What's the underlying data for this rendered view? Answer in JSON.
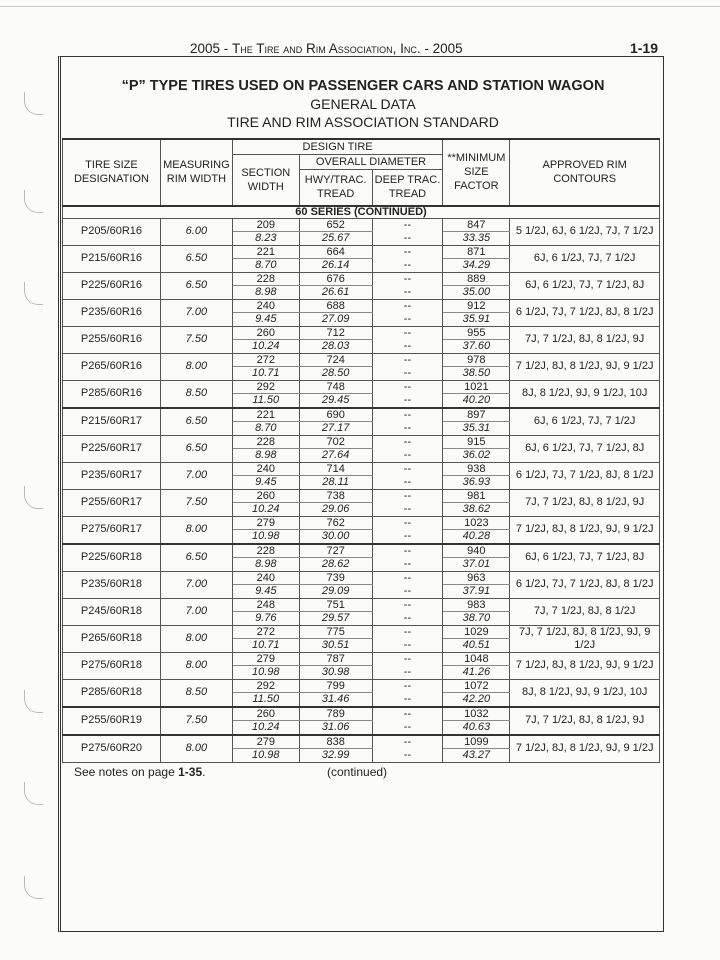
{
  "running_header": {
    "left": "2005 - ",
    "name": "The Tire and Rim Association, Inc.",
    "right": " - 2005",
    "page": "1-19"
  },
  "title": {
    "line1": "“P” TYPE TIRES USED ON PASSENGER CARS AND STATION WAGON",
    "line2": "GENERAL DATA",
    "line3": "TIRE AND RIM ASSOCIATION STANDARD"
  },
  "table": {
    "headers": {
      "tire_size": "TIRE SIZE DESIGNATION",
      "measuring_rim": "MEASURING RIM WIDTH",
      "design_tire": "DESIGN TIRE",
      "section_width": "SECTION WIDTH",
      "overall_diameter": "OVERALL DIAMETER",
      "hwy": "HWY/TRAC. TREAD",
      "deep": "DEEP TRAC. TREAD",
      "min_size": "**MINIMUM SIZE FACTOR",
      "contours": "APPROVED RIM CONTOURS"
    },
    "series_label": "60 SERIES (CONTINUED)",
    "rows": [
      {
        "size": "P205/60R16",
        "rim": "6.00",
        "sw_mm": "209",
        "sw_in": "8.23",
        "od_mm": "652",
        "od_in": "25.67",
        "deep1": "--",
        "deep2": "--",
        "msf_mm": "847",
        "msf_in": "33.35",
        "contours": "5 1/2J, 6J, 6 1/2J, 7J, 7 1/2J",
        "group": "R16"
      },
      {
        "size": "P215/60R16",
        "rim": "6.50",
        "sw_mm": "221",
        "sw_in": "8.70",
        "od_mm": "664",
        "od_in": "26.14",
        "deep1": "--",
        "deep2": "--",
        "msf_mm": "871",
        "msf_in": "34.29",
        "contours": "6J, 6 1/2J, 7J, 7 1/2J",
        "group": "R16"
      },
      {
        "size": "P225/60R16",
        "rim": "6.50",
        "sw_mm": "228",
        "sw_in": "8.98",
        "od_mm": "676",
        "od_in": "26.61",
        "deep1": "--",
        "deep2": "--",
        "msf_mm": "889",
        "msf_in": "35.00",
        "contours": "6J, 6 1/2J, 7J, 7 1/2J, 8J",
        "group": "R16"
      },
      {
        "size": "P235/60R16",
        "rim": "7.00",
        "sw_mm": "240",
        "sw_in": "9.45",
        "od_mm": "688",
        "od_in": "27.09",
        "deep1": "--",
        "deep2": "--",
        "msf_mm": "912",
        "msf_in": "35.91",
        "contours": "6 1/2J, 7J, 7 1/2J, 8J, 8 1/2J",
        "group": "R16"
      },
      {
        "size": "P255/60R16",
        "rim": "7.50",
        "sw_mm": "260",
        "sw_in": "10.24",
        "od_mm": "712",
        "od_in": "28.03",
        "deep1": "--",
        "deep2": "--",
        "msf_mm": "955",
        "msf_in": "37.60",
        "contours": "7J, 7 1/2J, 8J, 8 1/2J, 9J",
        "group": "R16"
      },
      {
        "size": "P265/60R16",
        "rim": "8.00",
        "sw_mm": "272",
        "sw_in": "10.71",
        "od_mm": "724",
        "od_in": "28.50",
        "deep1": "--",
        "deep2": "--",
        "msf_mm": "978",
        "msf_in": "38.50",
        "contours": "7 1/2J, 8J, 8 1/2J, 9J, 9 1/2J",
        "group": "R16"
      },
      {
        "size": "P285/60R16",
        "rim": "8.50",
        "sw_mm": "292",
        "sw_in": "11.50",
        "od_mm": "748",
        "od_in": "29.45",
        "deep1": "--",
        "deep2": "--",
        "msf_mm": "1021",
        "msf_in": "40.20",
        "contours": "8J, 8 1/2J, 9J, 9 1/2J, 10J",
        "group": "R16"
      },
      {
        "size": "P215/60R17",
        "rim": "6.50",
        "sw_mm": "221",
        "sw_in": "8.70",
        "od_mm": "690",
        "od_in": "27.17",
        "deep1": "--",
        "deep2": "--",
        "msf_mm": "897",
        "msf_in": "35.31",
        "contours": "6J, 6 1/2J, 7J, 7 1/2J",
        "group": "R17"
      },
      {
        "size": "P225/60R17",
        "rim": "6.50",
        "sw_mm": "228",
        "sw_in": "8.98",
        "od_mm": "702",
        "od_in": "27.64",
        "deep1": "--",
        "deep2": "--",
        "msf_mm": "915",
        "msf_in": "36.02",
        "contours": "6J, 6 1/2J, 7J, 7 1/2J, 8J",
        "group": "R17"
      },
      {
        "size": "P235/60R17",
        "rim": "7.00",
        "sw_mm": "240",
        "sw_in": "9.45",
        "od_mm": "714",
        "od_in": "28.11",
        "deep1": "--",
        "deep2": "--",
        "msf_mm": "938",
        "msf_in": "36.93",
        "contours": "6 1/2J, 7J, 7 1/2J, 8J,  8 1/2J",
        "group": "R17"
      },
      {
        "size": "P255/60R17",
        "rim": "7.50",
        "sw_mm": "260",
        "sw_in": "10.24",
        "od_mm": "738",
        "od_in": "29.06",
        "deep1": "--",
        "deep2": "--",
        "msf_mm": "981",
        "msf_in": "38.62",
        "contours": "7J, 7 1/2J, 8J, 8 1/2J, 9J",
        "group": "R17"
      },
      {
        "size": "P275/60R17",
        "rim": "8.00",
        "sw_mm": "279",
        "sw_in": "10.98",
        "od_mm": "762",
        "od_in": "30.00",
        "deep1": "--",
        "deep2": "--",
        "msf_mm": "1023",
        "msf_in": "40.28",
        "contours": "7 1/2J, 8J, 8 1/2J, 9J, 9 1/2J",
        "group": "R17"
      },
      {
        "size": "P225/60R18",
        "rim": "6.50",
        "sw_mm": "228",
        "sw_in": "8.98",
        "od_mm": "727",
        "od_in": "28.62",
        "deep1": "--",
        "deep2": "--",
        "msf_mm": "940",
        "msf_in": "37.01",
        "contours": "6J, 6 1/2J, 7J, 7 1/2J, 8J",
        "group": "R18"
      },
      {
        "size": "P235/60R18",
        "rim": "7.00",
        "sw_mm": "240",
        "sw_in": "9.45",
        "od_mm": "739",
        "od_in": "29.09",
        "deep1": "--",
        "deep2": "--",
        "msf_mm": "963",
        "msf_in": "37.91",
        "contours": "6 1/2J, 7J, 7 1/2J, 8J, 8 1/2J",
        "group": "R18"
      },
      {
        "size": "P245/60R18",
        "rim": "7.00",
        "sw_mm": "248",
        "sw_in": "9.76",
        "od_mm": "751",
        "od_in": "29.57",
        "deep1": "--",
        "deep2": "--",
        "msf_mm": "983",
        "msf_in": "38.70",
        "contours": "7J, 7 1/2J, 8J, 8 1/2J",
        "group": "R18"
      },
      {
        "size": "P265/60R18",
        "rim": "8.00",
        "sw_mm": "272",
        "sw_in": "10.71",
        "od_mm": "775",
        "od_in": "30.51",
        "deep1": "--",
        "deep2": "--",
        "msf_mm": "1029",
        "msf_in": "40.51",
        "contours": "7J, 7 1/2J, 8J, 8 1/2J, 9J, 9 1/2J",
        "group": "R18"
      },
      {
        "size": "P275/60R18",
        "rim": "8.00",
        "sw_mm": "279",
        "sw_in": "10.98",
        "od_mm": "787",
        "od_in": "30.98",
        "deep1": "--",
        "deep2": "--",
        "msf_mm": "1048",
        "msf_in": "41.26",
        "contours": "7 1/2J, 8J, 8 1/2J, 9J, 9 1/2J",
        "group": "R18"
      },
      {
        "size": "P285/60R18",
        "rim": "8.50",
        "sw_mm": "292",
        "sw_in": "11.50",
        "od_mm": "799",
        "od_in": "31.46",
        "deep1": "--",
        "deep2": "--",
        "msf_mm": "1072",
        "msf_in": "42.20",
        "contours": "8J, 8 1/2J, 9J, 9 1/2J, 10J",
        "group": "R18"
      },
      {
        "size": "P255/60R19",
        "rim": "7.50",
        "sw_mm": "260",
        "sw_in": "10.24",
        "od_mm": "789",
        "od_in": "31.06",
        "deep1": "--",
        "deep2": "--",
        "msf_mm": "1032",
        "msf_in": "40.63",
        "contours": "7J, 7 1/2J, 8J, 8 1/2J, 9J",
        "group": "R19"
      },
      {
        "size": "P275/60R20",
        "rim": "8.00",
        "sw_mm": "279",
        "sw_in": "10.98",
        "od_mm": "838",
        "od_in": "32.99",
        "deep1": "--",
        "deep2": "--",
        "msf_mm": "1099",
        "msf_in": "43.27",
        "contours": "7 1/2J, 8J, 8 1/2J, 9J, 9 1/2J",
        "group": "R20"
      }
    ]
  },
  "footer": {
    "notes_prefix": "See notes on page ",
    "notes_page": "1-35",
    "notes_suffix": ".",
    "continued": "(continued)"
  }
}
